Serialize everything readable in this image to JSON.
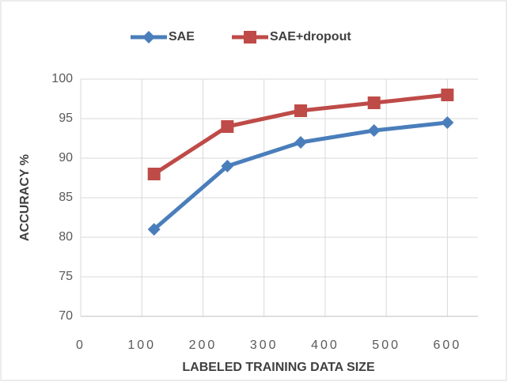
{
  "chart_data": {
    "type": "line",
    "x_label": "LABELED TRAINING DATA SIZE",
    "y_label": "ACCURACY %",
    "x": [
      120,
      240,
      360,
      480,
      600
    ],
    "series": [
      {
        "name": "SAE",
        "color": "#4a7ebb",
        "marker": "diamond",
        "values": [
          81,
          89,
          92,
          93.5,
          94.5
        ]
      },
      {
        "name": "SAE+dropout",
        "color": "#be4b48",
        "marker": "square",
        "values": [
          88,
          94,
          96,
          97,
          98
        ]
      }
    ],
    "xlim": [
      0,
      650
    ],
    "xticks": [
      0,
      100,
      200,
      300,
      400,
      500,
      600
    ],
    "ylim": [
      70,
      100
    ],
    "yticks": [
      70,
      75,
      80,
      85,
      90,
      95,
      100
    ],
    "grid": true,
    "legend": "top"
  }
}
